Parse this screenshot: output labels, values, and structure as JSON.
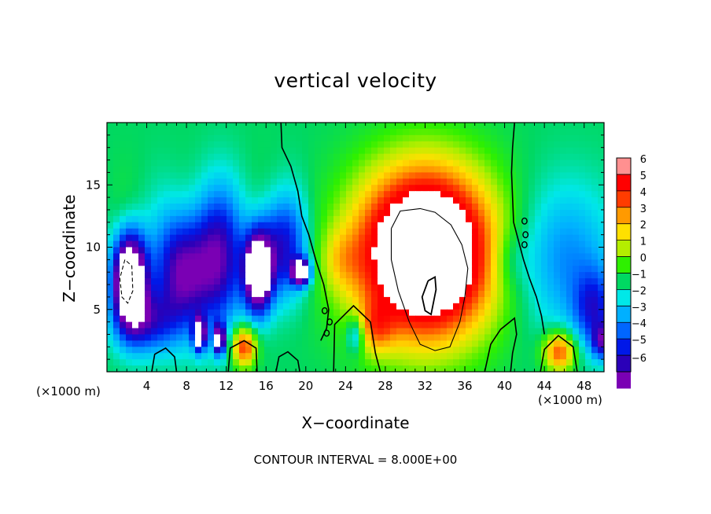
{
  "chart_data": {
    "type": "heatmap",
    "title": "vertical velocity",
    "xlabel": "X−coordinate",
    "ylabel": "Z−coordinate",
    "x_unit": "(×1000 m)",
    "y_unit": "(×1000 m)",
    "x_ticks": [
      4,
      8,
      12,
      16,
      20,
      24,
      28,
      32,
      36,
      40,
      44,
      48
    ],
    "y_ticks": [
      5,
      10,
      15
    ],
    "xlim": [
      0,
      50
    ],
    "ylim": [
      0,
      20
    ],
    "colorbar": {
      "tick_labels": [
        "6",
        "5",
        "4",
        "3",
        "2",
        "1",
        "0",
        "−1",
        "−2",
        "−3",
        "−4",
        "−5",
        "−6"
      ],
      "range": [
        -6,
        6
      ]
    },
    "footer": "CONTOUR INTERVAL = 8.000E+00",
    "features": [
      {
        "x": 32,
        "z": 9.5,
        "sign": "positive",
        "peak": "above 6"
      },
      {
        "x": 13.8,
        "z": 2.0,
        "sign": "positive",
        "peak": 4
      },
      {
        "x": 45.5,
        "z": 1.5,
        "sign": "positive",
        "peak": 4
      },
      {
        "x": 2.2,
        "z": 7.5,
        "sign": "negative",
        "peak": "below -6"
      },
      {
        "x": 15.2,
        "z": 8.0,
        "sign": "negative",
        "peak": "below -6"
      },
      {
        "x": 19.5,
        "z": 8.0,
        "sign": "negative",
        "peak": "below -6"
      },
      {
        "x": 9.3,
        "z": 3.0,
        "sign": "negative",
        "peak": "below -6"
      },
      {
        "x": 11.3,
        "z": 2.5,
        "sign": "negative",
        "peak": "below -6"
      },
      {
        "x": 50,
        "z": 2.5,
        "sign": "negative",
        "peak": -6
      }
    ]
  }
}
